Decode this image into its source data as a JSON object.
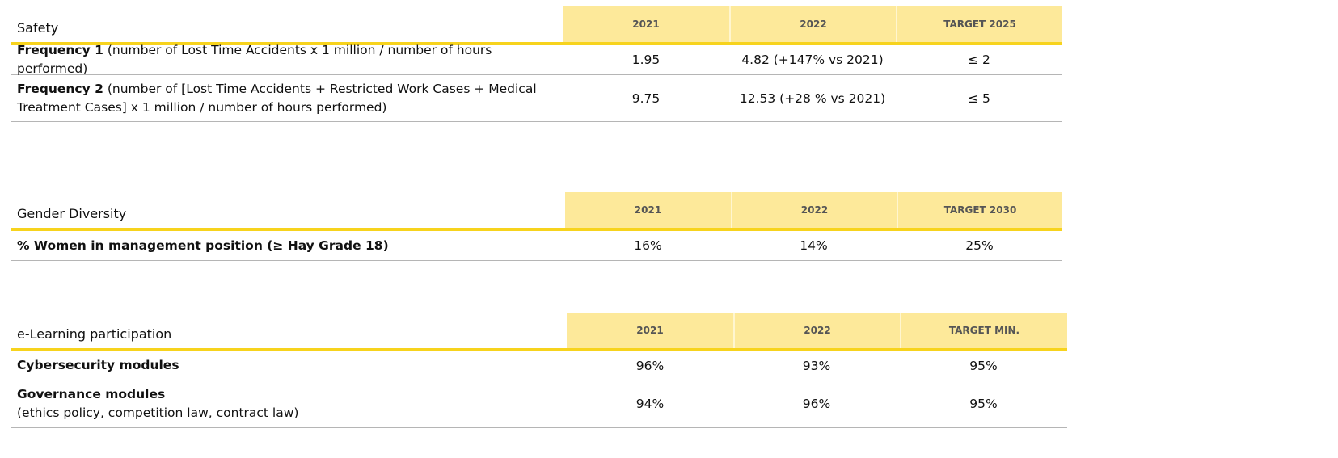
{
  "safety": {
    "title": "Safety",
    "columns": [
      "2021",
      "2022",
      "TARGET 2025"
    ],
    "rows": [
      {
        "label_bold": "Frequency 1",
        "label_rest": " (number of Lost Time Accidents x 1 million / number of hours performed)",
        "label_line2": "",
        "values": [
          "1.95",
          "4.82 (+147% vs 2021)",
          "≤ 2"
        ]
      },
      {
        "label_bold": "Frequency 2",
        "label_rest": " (number of [Lost Time Accidents + Restricted Work Cases + Medical",
        "label_line2": "Treatment Cases] x 1 million / number of hours performed)",
        "values": [
          "9.75",
          "12.53 (+28 % vs 2021)",
          "≤ 5"
        ]
      }
    ]
  },
  "gender": {
    "title": "Gender Diversity",
    "columns": [
      "2021",
      "2022",
      "TARGET 2030"
    ],
    "rows": [
      {
        "label_bold": "% Women in management position (≥ Hay Grade 18)",
        "values": [
          "16%",
          "14%",
          "25%"
        ]
      }
    ]
  },
  "elearning": {
    "title": "e-Learning participation",
    "columns": [
      "2021",
      "2022",
      "TARGET MIN."
    ],
    "rows": [
      {
        "label_bold": "Cybersecurity modules",
        "label_line2": "",
        "values": [
          "96%",
          "93%",
          "95%"
        ]
      },
      {
        "label_bold": "Governance modules",
        "label_line2": "(ethics policy, competition law, contract law)",
        "values": [
          "94%",
          "96%",
          "95%"
        ]
      }
    ]
  },
  "colors": {
    "header_fill": "#fde99a",
    "accent_line": "#f7d31d",
    "row_divider": "#b5b5b5"
  }
}
